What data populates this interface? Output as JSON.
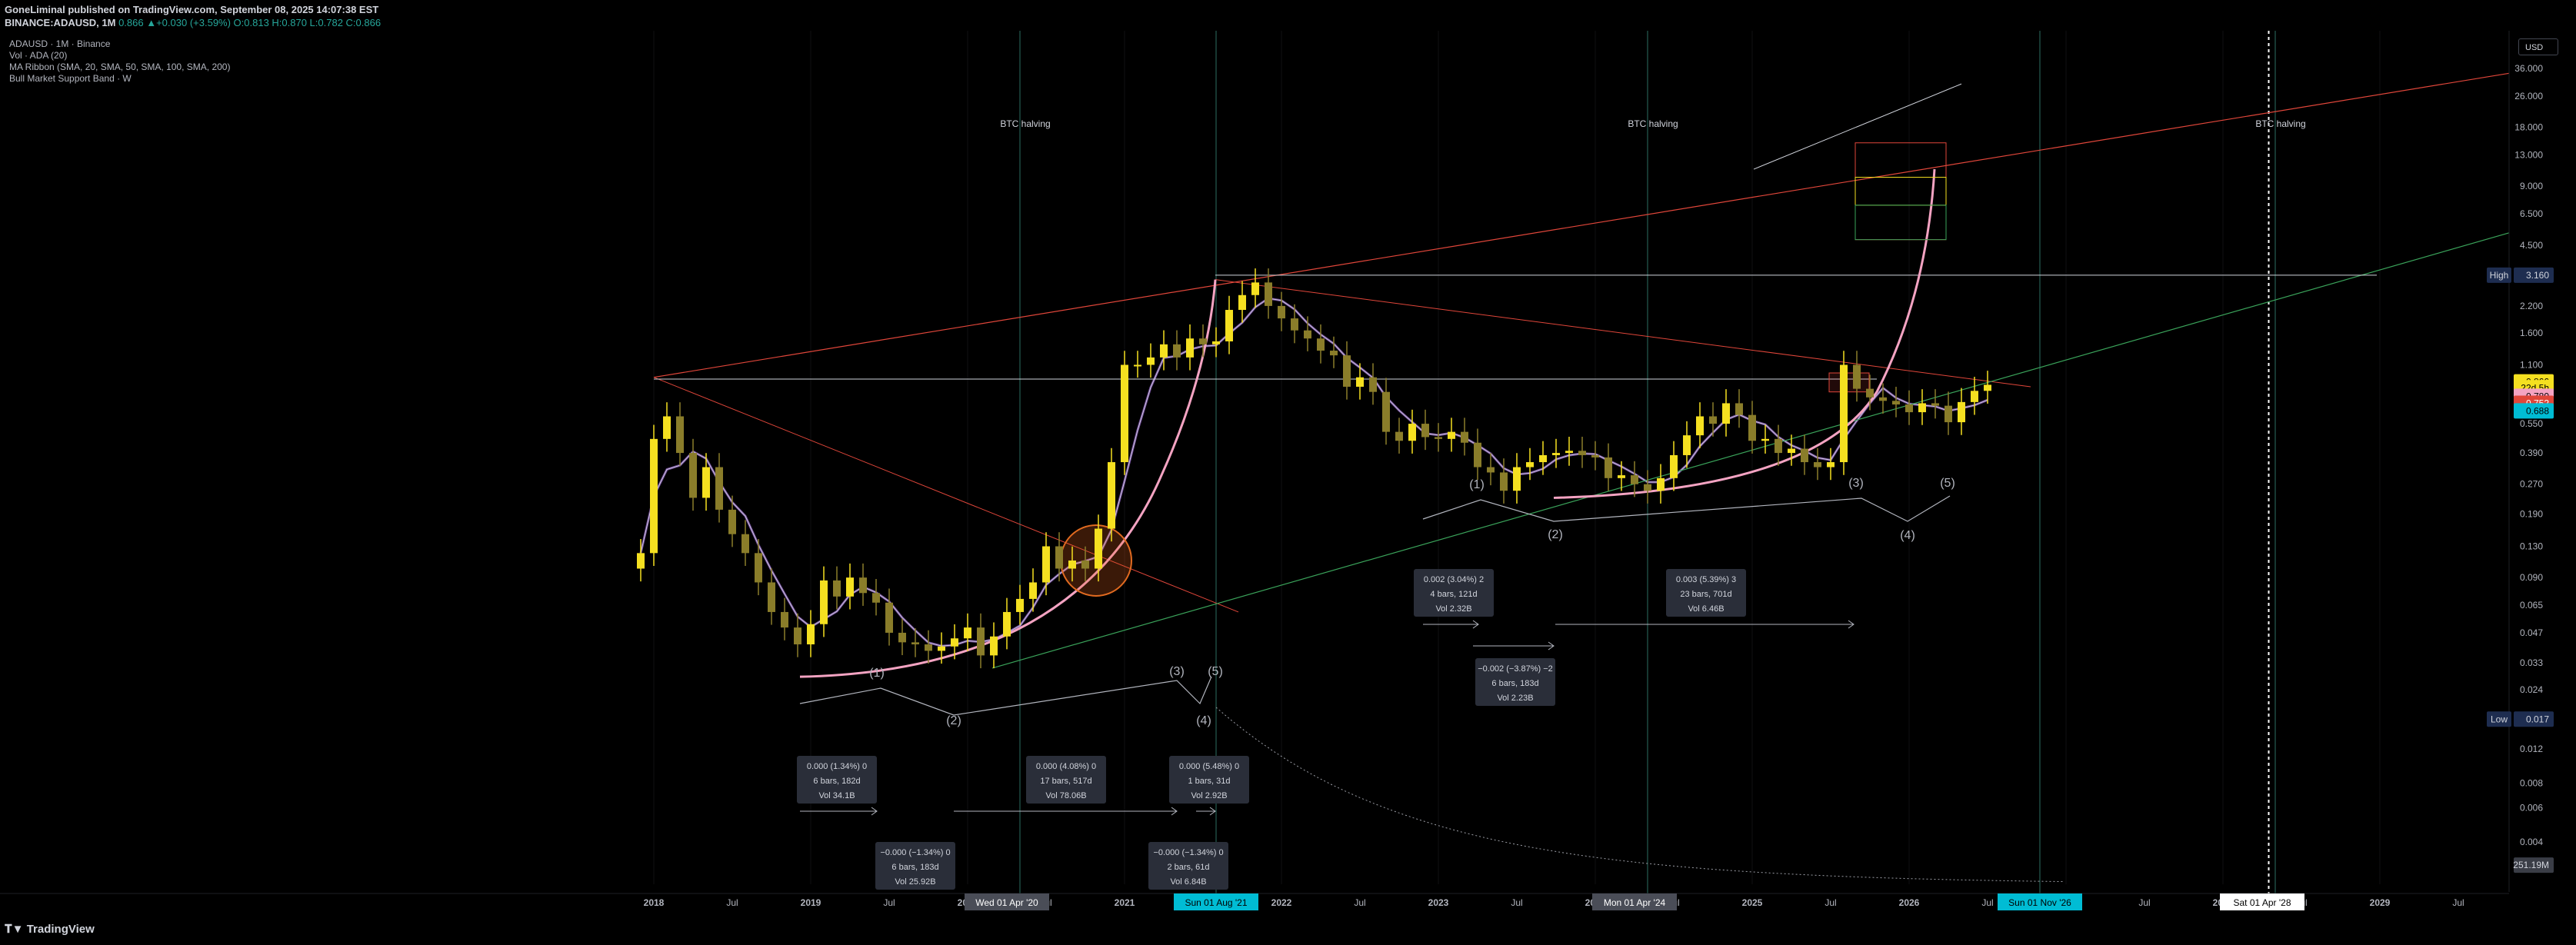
{
  "header": {
    "publisher_line": "GoneLiminal published on TradingView.com, September 08, 2025 14:07:38 EST",
    "publisher": "GoneLiminal",
    "symbol_line_prefix": "BINANCE:ADAUSD, 1M",
    "ohlc": "0.866 ▲+0.030 (+3.59%) O:0.813 H:0.870 L:0.782 C:0.866"
  },
  "legend": {
    "title": "ADAUSD · 1M · Binance",
    "items": [
      "Vol · ADA (20)",
      "MA Ribbon (SMA, 20, SMA, 50, SMA, 100, SMA, 200)",
      "Bull Market Support Band · W"
    ]
  },
  "currency_button": "USD",
  "footer": {
    "brand": "TradingView"
  },
  "colors": {
    "background": "#000000",
    "candle": "#f5e020",
    "candle_dim": "#8a7d2a",
    "red_line": "#e0463a",
    "green_line": "#3aa35a",
    "pink_curve": "#f4a3c2",
    "white_line": "#d1d4dc",
    "halving_line": "#2b6e62"
  },
  "chart_data": {
    "type": "candlestick",
    "scale": "log",
    "y_ticks": [
      "36.000",
      "26.000",
      "18.000",
      "13.000",
      "9.000",
      "6.500",
      "4.500",
      "3.200",
      "2.200",
      "1.600",
      "1.100",
      "0.780",
      "0.550",
      "0.390",
      "0.270",
      "0.190",
      "0.130",
      "0.090",
      "0.065",
      "0.047",
      "0.033",
      "0.024",
      "0.017",
      "0.012",
      "0.008",
      "0.006",
      "0.004",
      "0.003"
    ],
    "x_ticks": [
      "2018",
      "Jul",
      "2019",
      "Jul",
      "2020",
      "Jul",
      "2021",
      "Jul",
      "2022",
      "Jul",
      "2023",
      "Jul",
      "2024",
      "Jul",
      "2025",
      "Jul",
      "2026",
      "Jul",
      "2027",
      "Jul",
      "2028",
      "Jul",
      "2029",
      "Jul"
    ],
    "halvings": [
      "BTC halving",
      "BTC halving",
      "BTC halving"
    ],
    "date_badges": [
      "Wed 01 Apr '20",
      "Sun 01 Aug '21",
      "Mon 01 Apr '24",
      "Sun 01 Nov '26",
      "Sat 01 Apr '28"
    ],
    "price_badges": {
      "high_label": "High",
      "high_value": "3.160",
      "low_label": "Low",
      "low_value": "0.017",
      "current": "0.866",
      "countdown": "22d 5h",
      "pink": "0.780",
      "red": "0.752",
      "teal": "0.688",
      "volume": "251.19M"
    },
    "wave_labels": [
      "(1)",
      "(2)",
      "(3)",
      "(4)",
      "(5)",
      "(1)",
      "(2)",
      "(3)",
      "(4)",
      "(5)"
    ],
    "measures": [
      {
        "l1": "0.000 (1.34%) 0",
        "l2": "6 bars, 182d",
        "l3": "Vol 34.1B"
      },
      {
        "l1": "−0.000 (−1.34%) 0",
        "l2": "6 bars, 183d",
        "l3": "Vol 25.92B"
      },
      {
        "l1": "0.000 (4.08%) 0",
        "l2": "17 bars, 517d",
        "l3": "Vol 78.06B"
      },
      {
        "l1": "0.000 (5.48%) 0",
        "l2": "1 bars, 31d",
        "l3": "Vol 2.92B"
      },
      {
        "l1": "−0.000 (−1.34%) 0",
        "l2": "2 bars, 61d",
        "l3": "Vol 6.84B"
      },
      {
        "l1": "0.002 (3.04%) 2",
        "l2": "4 bars, 121d",
        "l3": "Vol 2.32B"
      },
      {
        "l1": "−0.002 (−3.87%) −2",
        "l2": "6 bars, 183d",
        "l3": "Vol 2.23B"
      },
      {
        "l1": "0.003 (5.39%) 3",
        "l2": "23 bars, 701d",
        "l3": "Vol 6.46B"
      }
    ],
    "closes": [
      0.12,
      0.46,
      0.6,
      0.39,
      0.23,
      0.33,
      0.2,
      0.15,
      0.12,
      0.085,
      0.06,
      0.05,
      0.041,
      0.052,
      0.087,
      0.072,
      0.09,
      0.075,
      0.067,
      0.047,
      0.042,
      0.041,
      0.038,
      0.04,
      0.044,
      0.05,
      0.036,
      0.045,
      0.06,
      0.07,
      0.085,
      0.13,
      0.1,
      0.11,
      0.1,
      0.16,
      0.35,
      1.1,
      1.1,
      1.2,
      1.4,
      1.2,
      1.5,
      1.4,
      1.45,
      2.1,
      2.5,
      2.9,
      2.2,
      1.9,
      1.65,
      1.5,
      1.3,
      1.23,
      0.85,
      0.95,
      0.8,
      0.5,
      0.45,
      0.55,
      0.47,
      0.46,
      0.5,
      0.44,
      0.33,
      0.31,
      0.25,
      0.33,
      0.35,
      0.38,
      0.39,
      0.4,
      0.38,
      0.37,
      0.29,
      0.3,
      0.27,
      0.25,
      0.29,
      0.38,
      0.48,
      0.6,
      0.55,
      0.7,
      0.61,
      0.45,
      0.46,
      0.39,
      0.41,
      0.35,
      0.33,
      0.35,
      1.1,
      0.83,
      0.75,
      0.72,
      0.69,
      0.63,
      0.7,
      0.68,
      0.56,
      0.71,
      0.81,
      0.87
    ]
  }
}
